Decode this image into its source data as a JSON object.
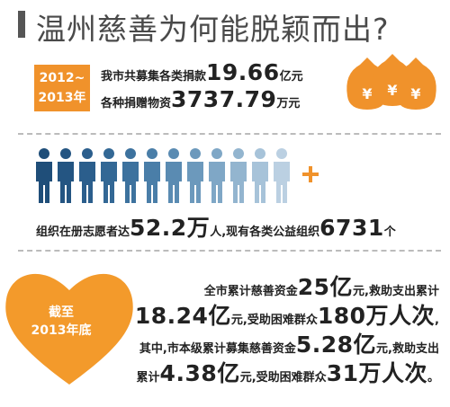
{
  "title": "温州慈善为何能脱颖而出?",
  "period": {
    "line1": "2012~",
    "line2": "2013年"
  },
  "donations": [
    [
      "我市共募集各类捐款",
      "19.66",
      "亿元"
    ],
    [
      "各种捐赠物资",
      "3737.79",
      "万元"
    ]
  ],
  "volunteers": [
    "组织在册志愿者达",
    "52.2万",
    "人,现有各类公益组织",
    "6731",
    "个"
  ],
  "heart": {
    "line1": "截至",
    "line2": "2013年底"
  },
  "summary": [
    [
      "全市累计慈善资金",
      "25亿",
      "元,救助支出累计"
    ],
    [
      "",
      "18.24亿",
      "元,受助困难群众",
      "180万人次",
      ","
    ],
    [
      "其中,市本级累计募集慈善资金",
      "5.28亿",
      "元,救助支出"
    ],
    [
      "累计",
      "4.38亿",
      "元,受助困难群众",
      "31万人次",
      "。"
    ]
  ]
}
